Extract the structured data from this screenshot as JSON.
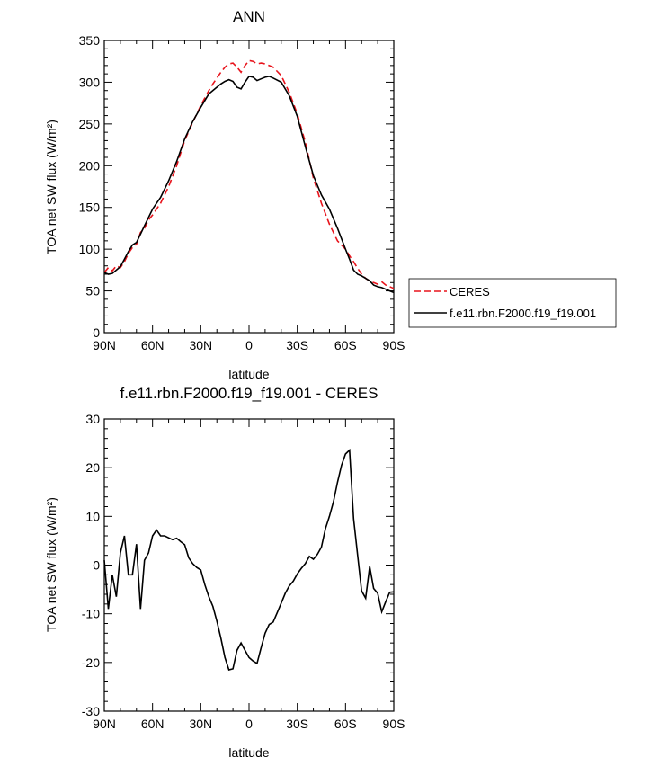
{
  "chart_data": [
    {
      "type": "line",
      "title": "ANN",
      "xlabel": "latitude",
      "ylabel": "TOA net SW flux (W/m²)",
      "xlim": [
        90,
        -90
      ],
      "ylim": [
        0,
        350
      ],
      "xticks": [
        90,
        60,
        30,
        0,
        -30,
        -60,
        -90
      ],
      "xtick_labels": [
        "90N",
        "60N",
        "30N",
        "0",
        "30S",
        "60S",
        "90S"
      ],
      "yticks": [
        0,
        50,
        100,
        150,
        200,
        250,
        300,
        350
      ],
      "ytick_labels": [
        "0",
        "50",
        "100",
        "150",
        "200",
        "250",
        "300",
        "350"
      ],
      "legend_position": "right",
      "series": [
        {
          "name": "CERES",
          "color": "#e8141c",
          "dash": "dashed",
          "x": [
            90,
            87.5,
            85,
            82.5,
            80,
            77.5,
            75,
            72.5,
            70,
            67.5,
            65,
            62.5,
            60,
            57.5,
            55,
            50,
            45,
            40,
            35,
            30,
            25,
            22.5,
            20,
            17.5,
            15,
            12.5,
            10,
            7.5,
            5,
            2.5,
            0,
            -2.5,
            -5,
            -7.5,
            -10,
            -12.5,
            -15,
            -20,
            -25,
            -30,
            -35,
            -40,
            -45,
            -50,
            -55,
            -60,
            -62.5,
            -65,
            -67.5,
            -70,
            -72.5,
            -75,
            -77.5,
            -80,
            -82.5,
            -85,
            -87.5,
            -90
          ],
          "values": [
            72,
            78,
            74,
            80,
            78,
            85,
            95,
            102,
            106,
            120,
            125,
            135,
            141,
            148,
            155,
            175,
            200,
            230,
            252,
            272,
            290,
            298,
            305,
            312,
            318,
            322,
            323,
            318,
            312,
            320,
            326,
            325,
            322,
            323,
            322,
            320,
            318,
            308,
            288,
            262,
            228,
            185,
            155,
            130,
            110,
            100,
            92,
            85,
            77,
            70,
            65,
            62,
            60,
            58,
            61,
            57,
            55,
            53
          ]
        },
        {
          "name": "f.e11.rbn.F2000.f19_f19.001",
          "color": "#000000",
          "dash": "solid",
          "x": [
            90,
            87.5,
            85,
            82.5,
            80,
            77.5,
            75,
            72.5,
            70,
            67.5,
            65,
            62.5,
            60,
            57.5,
            55,
            50,
            45,
            40,
            35,
            30,
            25,
            20,
            17.5,
            15,
            12.5,
            10,
            7.5,
            5,
            2.5,
            0,
            -2.5,
            -5,
            -7.5,
            -10,
            -12.5,
            -15,
            -20,
            -25,
            -30,
            -35,
            -40,
            -45,
            -50,
            -55,
            -60,
            -62.5,
            -65,
            -67.5,
            -70,
            -72.5,
            -75,
            -77.5,
            -80,
            -82.5,
            -85,
            -87.5,
            -90
          ],
          "values": [
            72,
            70,
            71,
            75,
            79,
            88,
            97,
            105,
            108,
            118,
            128,
            138,
            148,
            155,
            162,
            182,
            205,
            232,
            253,
            270,
            286,
            294,
            298,
            301,
            303,
            301,
            294,
            292,
            300,
            307,
            306,
            302,
            304,
            306,
            307,
            305,
            300,
            284,
            259,
            223,
            188,
            165,
            148,
            125,
            100,
            88,
            75,
            70,
            68,
            65,
            62,
            57,
            55,
            54,
            52,
            50,
            48
          ]
        }
      ]
    },
    {
      "type": "line",
      "title": "f.e11.rbn.F2000.f19_f19.001 - CERES",
      "xlabel": "latitude",
      "ylabel": "TOA net SW flux (W/m²)",
      "xlim": [
        90,
        -90
      ],
      "ylim": [
        -30,
        30
      ],
      "xticks": [
        90,
        60,
        30,
        0,
        -30,
        -60,
        -90
      ],
      "xtick_labels": [
        "90N",
        "60N",
        "30N",
        "0",
        "30S",
        "60S",
        "90S"
      ],
      "yticks": [
        -30,
        -20,
        -10,
        0,
        10,
        20,
        30
      ],
      "ytick_labels": [
        "-30",
        "-20",
        "-10",
        "0",
        "10",
        "20",
        "30"
      ],
      "series": [
        {
          "name": "f.e11.rbn.F2000.f19_f19.001 - CERES",
          "color": "#000000",
          "dash": "solid",
          "x": [
            90,
            87.5,
            85,
            82.5,
            80,
            77.5,
            75,
            72.5,
            70,
            67.5,
            65,
            62.5,
            60,
            57.5,
            55,
            52.5,
            50,
            47.5,
            45,
            42.5,
            40,
            37.5,
            35,
            32.5,
            30,
            27.5,
            25,
            22.5,
            20,
            17.5,
            15,
            12.5,
            10,
            7.5,
            5,
            2.5,
            0,
            -2.5,
            -5,
            -7.5,
            -10,
            -12.5,
            -15,
            -17.5,
            -20,
            -22.5,
            -25,
            -27.5,
            -30,
            -32.5,
            -35,
            -37.5,
            -40,
            -42.5,
            -45,
            -47.5,
            -50,
            -52.5,
            -55,
            -57.5,
            -60,
            -62.5,
            -65,
            -67.5,
            -70,
            -72.5,
            -75,
            -77.5,
            -80,
            -82.5,
            -85,
            -87.5,
            -90
          ],
          "values": [
            1,
            -9,
            -2,
            -6.5,
            2.5,
            6,
            -2,
            -2,
            4.3,
            -9,
            1,
            2.5,
            6,
            7.2,
            6,
            6,
            5.6,
            5.2,
            5.5,
            4.8,
            4.2,
            1.5,
            0.3,
            -0.5,
            -1,
            -4,
            -6.5,
            -8.5,
            -11.5,
            -15,
            -19,
            -21.5,
            -21.3,
            -17.5,
            -16,
            -17.5,
            -19,
            -19.7,
            -20.2,
            -17,
            -14,
            -12.2,
            -11.7,
            -9.8,
            -7.8,
            -5.8,
            -4.3,
            -3.3,
            -1.8,
            -0.7,
            0.3,
            1.8,
            1.2,
            2.2,
            3.7,
            7.5,
            10,
            13,
            17,
            20.5,
            22.8,
            23.6,
            9.5,
            2,
            -5.3,
            -6.8,
            -0.3,
            -4.8,
            -5.8,
            -9.6,
            -7.5,
            -5.6,
            -5.5
          ]
        }
      ]
    }
  ]
}
